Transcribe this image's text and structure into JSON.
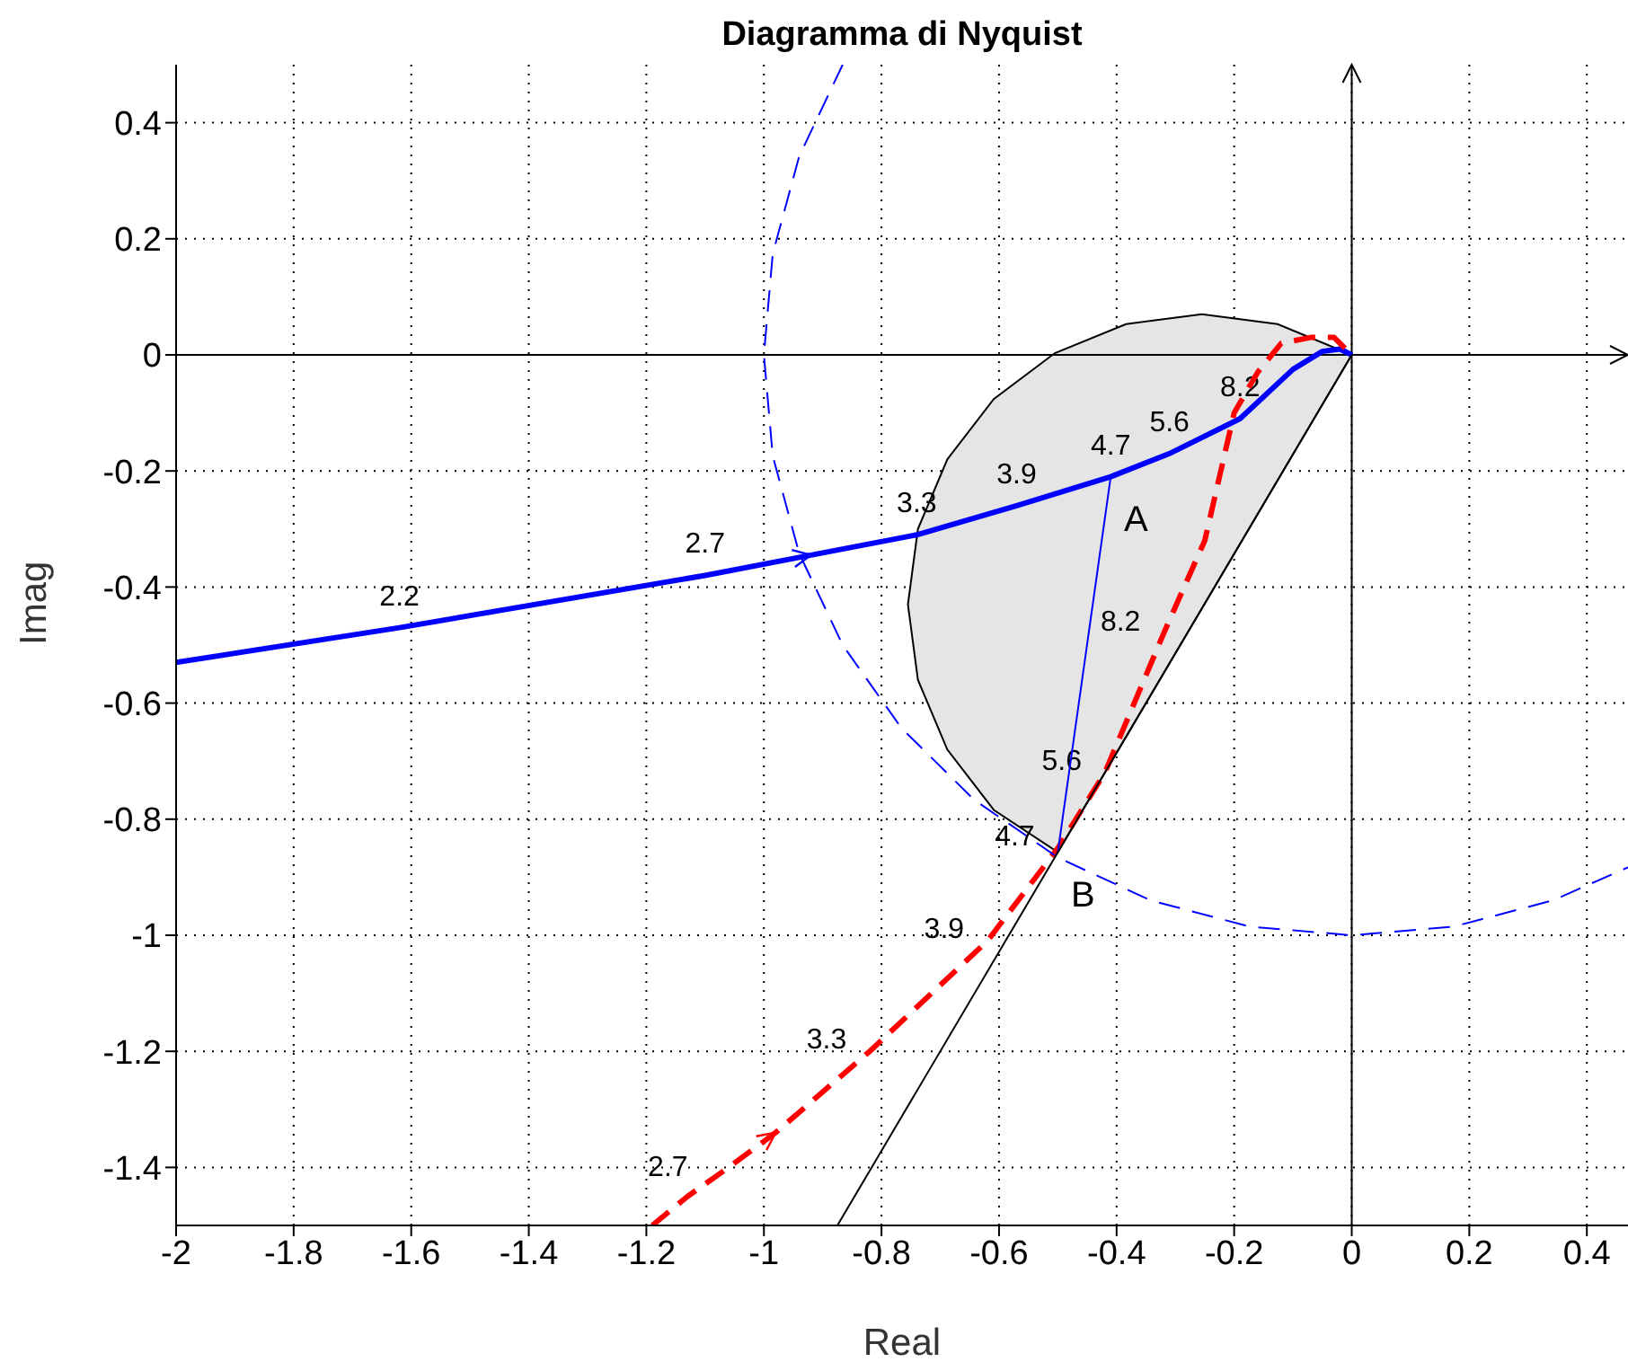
{
  "chart_data": {
    "type": "line",
    "title": "Diagramma di Nyquist",
    "xlabel": "Real",
    "ylabel": "Imag",
    "xlim": [
      -2,
      0.47
    ],
    "ylim": [
      -1.5,
      0.5
    ],
    "xticks": [
      -2,
      -1.8,
      -1.6,
      -1.4,
      -1.2,
      -1,
      -0.8,
      -0.6,
      -0.4,
      -0.2,
      0,
      0.2,
      0.4
    ],
    "yticks": [
      -1.4,
      -1.2,
      -1,
      -0.8,
      -0.6,
      -0.4,
      -0.2,
      0,
      0.2,
      0.4
    ],
    "grid": true,
    "series": [
      {
        "type": "line",
        "color": "#0000ff",
        "line_style": "solid",
        "x": [
          -2,
          -1.62,
          -1.1,
          -0.92,
          -0.74,
          -0.57,
          -0.41,
          -0.31,
          -0.19,
          -0.1,
          -0.05,
          -0.02,
          0
        ],
        "values": [
          -0.53,
          -0.47,
          -0.38,
          -0.345,
          -0.31,
          -0.26,
          -0.21,
          -0.17,
          -0.11,
          -0.025,
          0.006,
          0.01,
          0
        ]
      },
      {
        "type": "line",
        "color": "#ff0000",
        "line_style": "dashed",
        "x": [
          -1.19,
          -1.13,
          -1.06,
          -0.98,
          -0.82,
          -0.62,
          -0.5,
          -0.42,
          -0.32,
          -0.25,
          -0.2,
          -0.16,
          -0.12,
          -0.07,
          -0.03,
          0
        ],
        "values": [
          -1.5,
          -1.45,
          -1.4,
          -1.34,
          -1.2,
          -1.01,
          -0.85,
          -0.72,
          -0.48,
          -0.32,
          -0.1,
          -0.03,
          0.02,
          0.03,
          0.03,
          0
        ]
      },
      {
        "type": "area",
        "color": "#e5e5e5",
        "x": [
          0,
          -0.126,
          -0.255,
          -0.384,
          -0.505,
          -0.609,
          -0.688,
          -0.738,
          -0.755,
          -0.738,
          -0.688,
          -0.609,
          -0.5
        ],
        "values": [
          0,
          0.053,
          0.07,
          0.053,
          0.003,
          -0.076,
          -0.18,
          -0.3,
          -0.43,
          -0.56,
          -0.68,
          -0.784,
          -0.857
        ]
      },
      {
        "type": "line",
        "color": "#0000ff",
        "line_style": "dashed",
        "x": [
          -0.866,
          -0.94,
          -0.985,
          -1,
          -0.985,
          -0.94,
          -0.866,
          -0.766,
          -0.643,
          -0.5,
          -0.342,
          -0.174,
          0,
          0.174,
          0.342,
          0.47
        ],
        "values": [
          0.5,
          0.342,
          0.174,
          0,
          -0.174,
          -0.342,
          -0.5,
          -0.643,
          -0.766,
          -0.866,
          -0.94,
          -0.985,
          -1,
          -0.985,
          -0.94,
          -0.883
        ]
      },
      {
        "type": "line",
        "color": "#0000ff",
        "line_style": "solid",
        "x": [
          -0.41,
          -0.5
        ],
        "values": [
          -0.21,
          -0.857
        ]
      },
      {
        "type": "line",
        "color": "#000000",
        "line_style": "solid",
        "x": [
          0,
          -0.875
        ],
        "values": [
          0,
          -1.5
        ]
      }
    ],
    "annotations": [
      {
        "text": "2.2",
        "x": -1.62,
        "y": -0.47
      },
      {
        "text": "2.7",
        "x": -1.1,
        "y": -0.38
      },
      {
        "text": "3.3",
        "x": -0.74,
        "y": -0.31
      },
      {
        "text": "3.9",
        "x": -0.57,
        "y": -0.26
      },
      {
        "text": "4.7",
        "x": -0.41,
        "y": -0.21
      },
      {
        "text": "5.6",
        "x": -0.31,
        "y": -0.17
      },
      {
        "text": "8.2",
        "x": -0.19,
        "y": -0.11
      },
      {
        "text": "2.7",
        "x": -1.09,
        "y": -1.42
      },
      {
        "text": "3.3",
        "x": -0.82,
        "y": -1.2
      },
      {
        "text": "3.9",
        "x": -0.62,
        "y": -1.01
      },
      {
        "text": "4.7",
        "x": -0.5,
        "y": -0.85
      },
      {
        "text": "5.6",
        "x": -0.42,
        "y": -0.72
      },
      {
        "text": "8.2",
        "x": -0.32,
        "y": -0.48
      },
      {
        "text": "A",
        "x": -0.41,
        "y": -0.21
      },
      {
        "text": "B",
        "x": -0.5,
        "y": -0.857
      }
    ]
  }
}
